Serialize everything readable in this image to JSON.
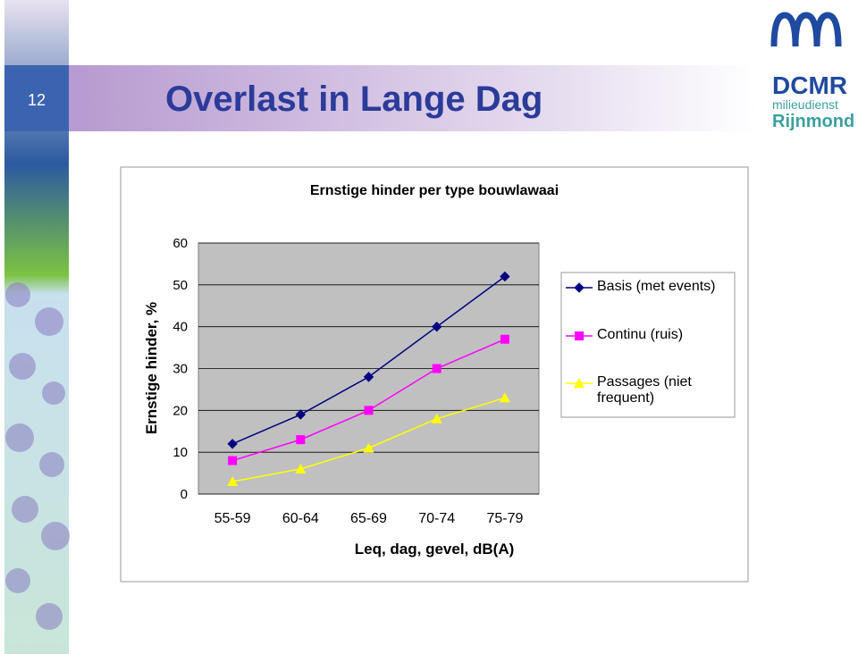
{
  "slide_number": "12",
  "slide_title": "Overlast in Lange Dag",
  "logo": {
    "name": "DCMR",
    "line1": "milieudienst",
    "line2": "Rijnmond"
  },
  "chart_data": {
    "type": "line",
    "title": "Ernstige hinder per type bouwlawaai",
    "x_label": "Leq, dag, gevel, dB(A)",
    "y_label": "Ernstige hinder, %",
    "categories": [
      "55-59",
      "60-64",
      "65-69",
      "70-74",
      "75-79"
    ],
    "series": [
      {
        "name": "Basis (met events)",
        "color": "#000080",
        "marker": "diamond",
        "values": [
          12,
          19,
          28,
          40,
          52
        ]
      },
      {
        "name": "Continu (ruis)",
        "color": "#ff00ff",
        "marker": "square",
        "values": [
          8,
          13,
          20,
          30,
          37
        ]
      },
      {
        "name": "Passages (niet frequent)",
        "color": "#ffff00",
        "marker": "triangle",
        "values": [
          3,
          6,
          11,
          18,
          23
        ]
      }
    ],
    "ylim": [
      0,
      60
    ],
    "yticks": [
      0,
      10,
      20,
      30,
      40,
      50,
      60
    ],
    "grid": true,
    "legend": "right"
  }
}
